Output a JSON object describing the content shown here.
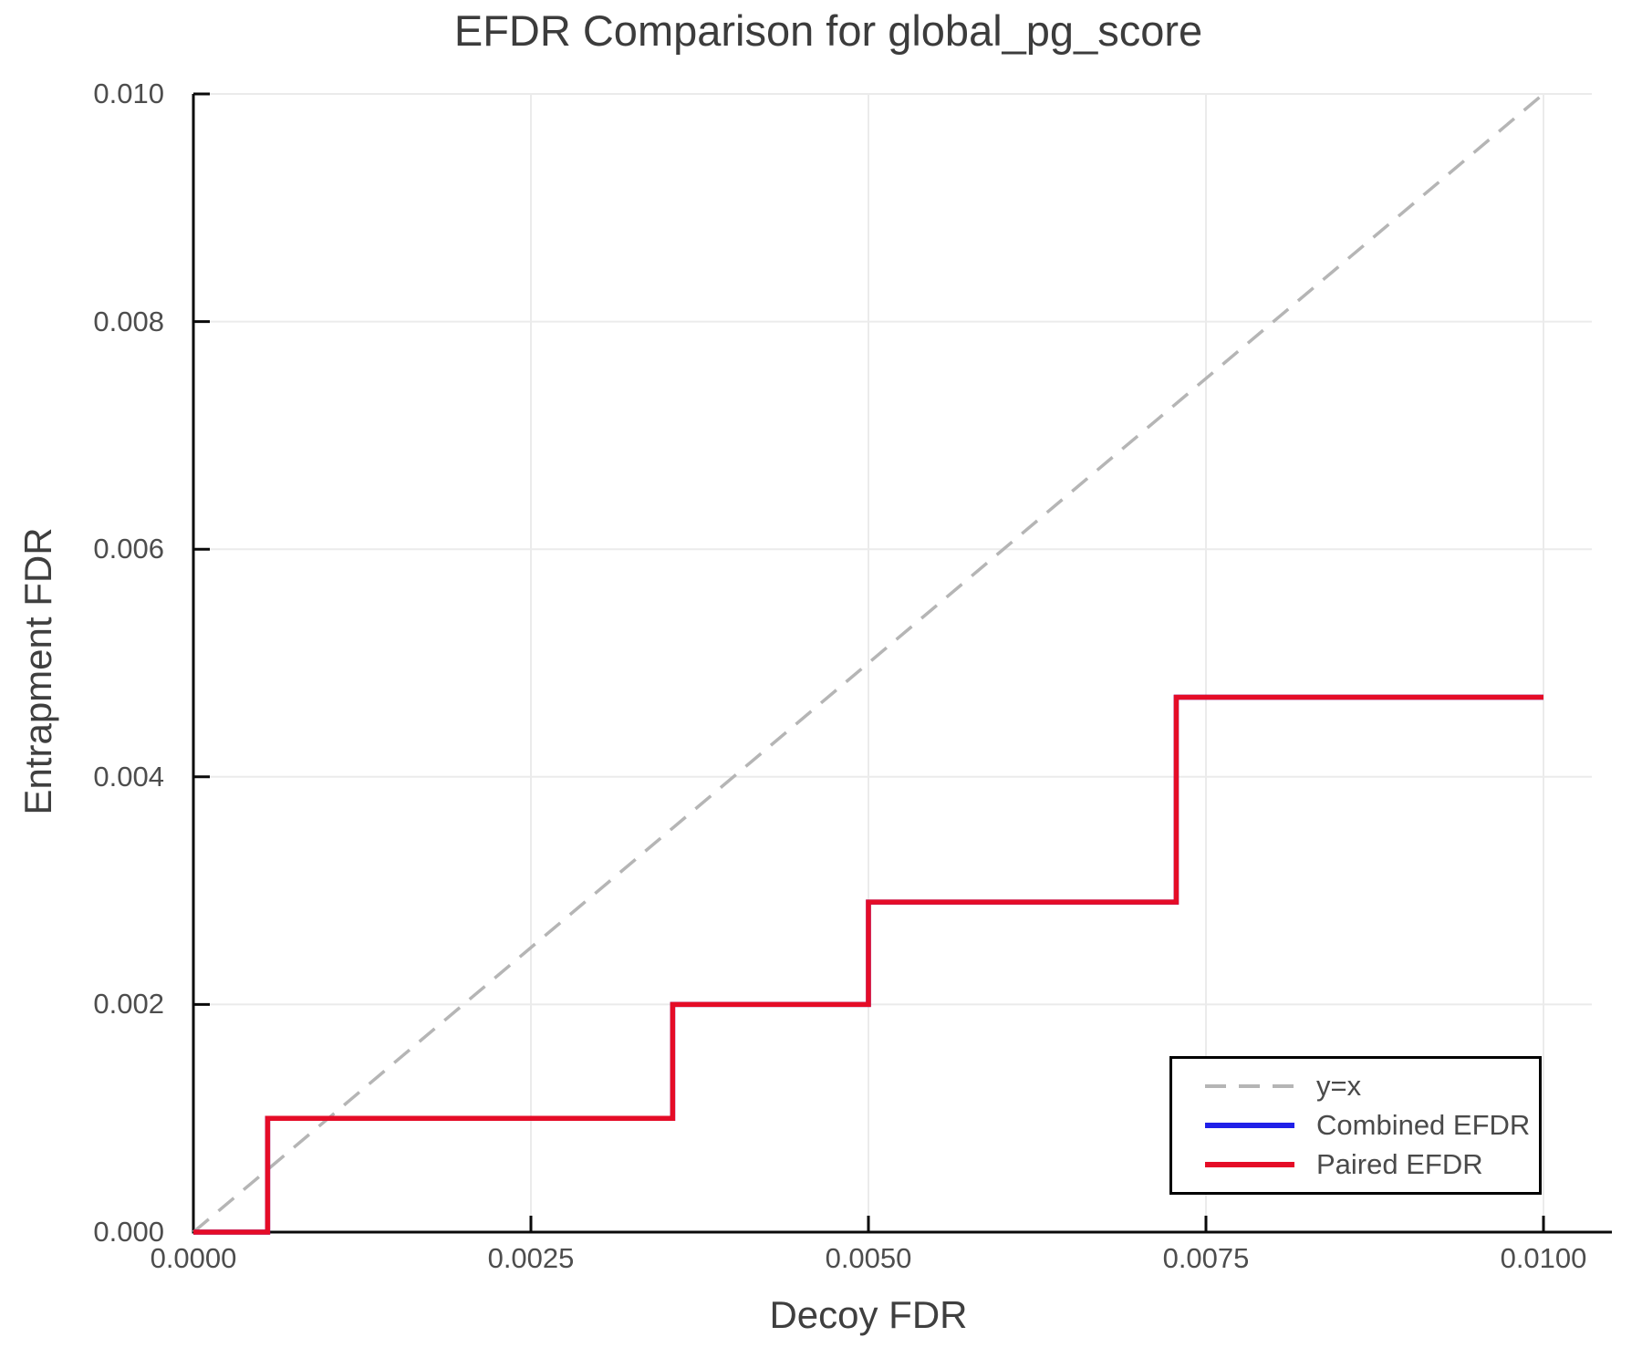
{
  "title": "EFDR Comparison for global_pg_score",
  "chart_data": {
    "type": "line",
    "title": "EFDR Comparison for global_pg_score",
    "xlabel": "Decoy FDR",
    "ylabel": "Entrapment FDR",
    "xlim": [
      0.0,
      0.01
    ],
    "ylim": [
      0.0,
      0.01
    ],
    "grid": true,
    "grid_color": "#ebebeb",
    "axis_color": "#0a0a0a",
    "legend_position": "lower right",
    "x_ticks": {
      "values": [
        0.0,
        0.0025,
        0.005,
        0.0075,
        0.01
      ],
      "labels": [
        "0.0000",
        "0.0025",
        "0.0050",
        "0.0075",
        "0.0100"
      ]
    },
    "y_ticks": {
      "values": [
        0.0,
        0.002,
        0.004,
        0.006,
        0.008,
        0.01
      ],
      "labels": [
        "0.000",
        "0.002",
        "0.004",
        "0.006",
        "0.008",
        "0.010"
      ]
    },
    "series": [
      {
        "name": "y=x",
        "style": "dashed",
        "color": "#b5b5b5",
        "points": [
          [
            0.0,
            0.0
          ],
          [
            0.01,
            0.01
          ]
        ]
      },
      {
        "name": "Combined EFDR",
        "style": "solid",
        "color": "#2020e8",
        "points": [
          [
            0.0,
            0.0
          ],
          [
            0.00055,
            0.0
          ],
          [
            0.00055,
            0.001
          ],
          [
            0.00355,
            0.001
          ],
          [
            0.00355,
            0.002
          ],
          [
            0.005,
            0.002
          ],
          [
            0.005,
            0.0029
          ],
          [
            0.00728,
            0.0029
          ],
          [
            0.00728,
            0.0047
          ],
          [
            0.01,
            0.0047
          ]
        ]
      },
      {
        "name": "Paired EFDR",
        "style": "solid",
        "color": "#e50c27",
        "points": [
          [
            0.0,
            0.0
          ],
          [
            0.00055,
            0.0
          ],
          [
            0.00055,
            0.001
          ],
          [
            0.00355,
            0.001
          ],
          [
            0.00355,
            0.002
          ],
          [
            0.005,
            0.002
          ],
          [
            0.005,
            0.0029
          ],
          [
            0.00728,
            0.0029
          ],
          [
            0.00728,
            0.0047
          ],
          [
            0.01,
            0.0047
          ]
        ]
      }
    ]
  }
}
